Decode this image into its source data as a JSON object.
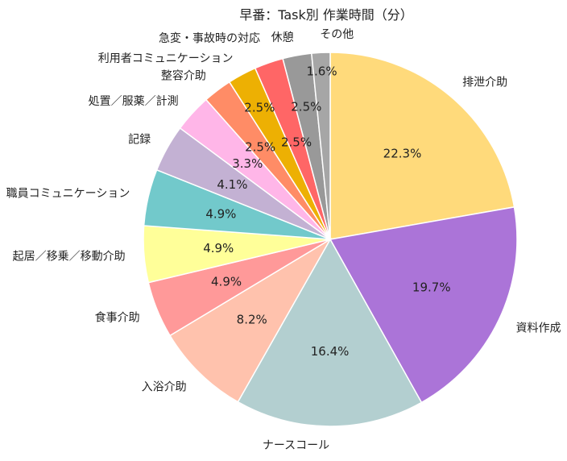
{
  "chart_data": {
    "type": "pie",
    "title": "早番：Task別 作業時間（分）",
    "start_angle": 90,
    "direction": "clockwise",
    "slices": [
      {
        "label": "排泄介助",
        "value": 22.3,
        "pct_label": "22.3%",
        "color": "#FFDA7B"
      },
      {
        "label": "資料作成",
        "value": 19.7,
        "pct_label": "19.7%",
        "color": "#AB74D8"
      },
      {
        "label": "ナースコール",
        "value": 16.4,
        "pct_label": "16.4%",
        "color": "#B3CFD0"
      },
      {
        "label": "入浴介助",
        "value": 8.2,
        "pct_label": "8.2%",
        "color": "#FFC2AD"
      },
      {
        "label": "食事介助",
        "value": 4.9,
        "pct_label": "4.9%",
        "color": "#FF9999"
      },
      {
        "label": "起居／移乗／移動介助",
        "value": 4.9,
        "pct_label": "4.9%",
        "color": "#FFFF99"
      },
      {
        "label": "職員コミュニケーション",
        "value": 4.9,
        "pct_label": "4.9%",
        "color": "#72C9CB"
      },
      {
        "label": "記録",
        "value": 4.1,
        "pct_label": "4.1%",
        "color": "#C3B1D3"
      },
      {
        "label": "処置／服薬／計測",
        "value": 3.3,
        "pct_label": "3.3%",
        "color": "#FFB6E8"
      },
      {
        "label": "整容介助",
        "value": 2.5,
        "pct_label": "2.5%",
        "color": "#FF8C66"
      },
      {
        "label": "利用者コミュニケーション",
        "value": 2.5,
        "pct_label": "2.5%",
        "color": "#EDB003"
      },
      {
        "label": "急変・事故時の対応",
        "value": 2.5,
        "pct_label": "2.5%",
        "color": "#FF6666"
      },
      {
        "label": "休憩",
        "value": 2.5,
        "pct_label": "2.5%",
        "color": "#999999"
      },
      {
        "label": "その他",
        "value": 1.6,
        "pct_label": "1.6%",
        "color": "#A6A6A6"
      }
    ]
  }
}
